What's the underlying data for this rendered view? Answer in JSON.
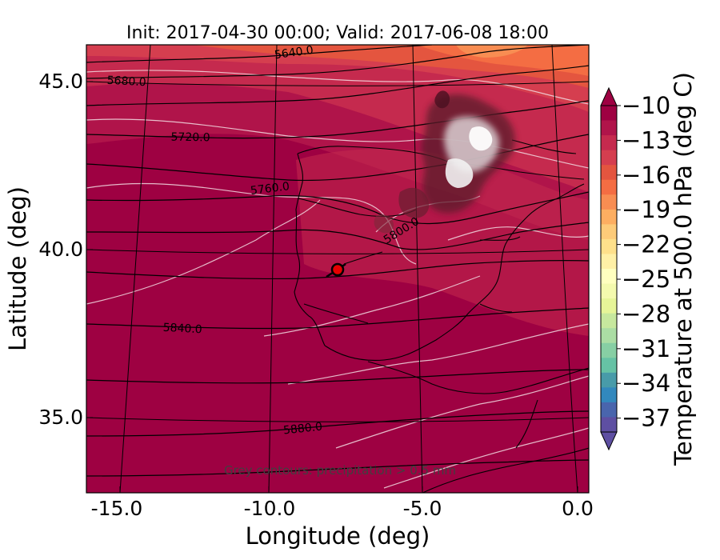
{
  "title": "Init: 2017-04-30 00:00; Valid: 2017-06-08 18:00",
  "xlabel": "Longitude (deg)",
  "ylabel": "Latitude (deg)",
  "xticks": [
    "-15.0",
    "-10.0",
    "-5.0",
    "0.0"
  ],
  "yticks": [
    "45.0",
    "40.0",
    "35.0"
  ],
  "colorbar": {
    "label": "Temperature at 500.0 hPa (deg C)",
    "ticks": [
      "−10",
      "−13",
      "−16",
      "−19",
      "−22",
      "−25",
      "−28",
      "−31",
      "−34",
      "−37"
    ],
    "colors": [
      "#9e0142",
      "#b0144a",
      "#c52a4e",
      "#d53e4f",
      "#e4553f",
      "#f46d43",
      "#f88d52",
      "#fdae61",
      "#fdcb79",
      "#fee08b",
      "#fff0a6",
      "#ffffbf",
      "#f4faae",
      "#e6f598",
      "#c7e89e",
      "#abdda4",
      "#87cfa4",
      "#66c2a5",
      "#489ba9",
      "#3288bd",
      "#4965ad",
      "#5e4fa2"
    ]
  },
  "contour_labels": [
    "5640.0",
    "5680.0",
    "5720.0",
    "5760.0",
    "5800.0",
    "5840.0",
    "5880.0"
  ],
  "note": "Grey contours: precipitation > 0.5 mm",
  "marker": {
    "lon": -7.6,
    "lat": 39.4
  },
  "colors": {
    "warm": "#9e0142",
    "mid": "#c52a4e",
    "north": "#e4553f",
    "far_north": "#f46d43",
    "marker": "#e60000"
  },
  "chart_data": {
    "type": "map",
    "title": "Init: 2017-04-30 00:00; Valid: 2017-06-08 18:00",
    "xlabel": "Longitude (deg)",
    "ylabel": "Latitude (deg)",
    "xlim": [
      -16,
      0
    ],
    "ylim": [
      33,
      46
    ],
    "geopotential_contours": [
      5640,
      5680,
      5720,
      5760,
      5800,
      5840,
      5880
    ],
    "colorbar_range": [
      -38,
      -10
    ],
    "colorbar_step": 1,
    "marker": {
      "lon": -7.6,
      "lat": 39.4
    }
  }
}
